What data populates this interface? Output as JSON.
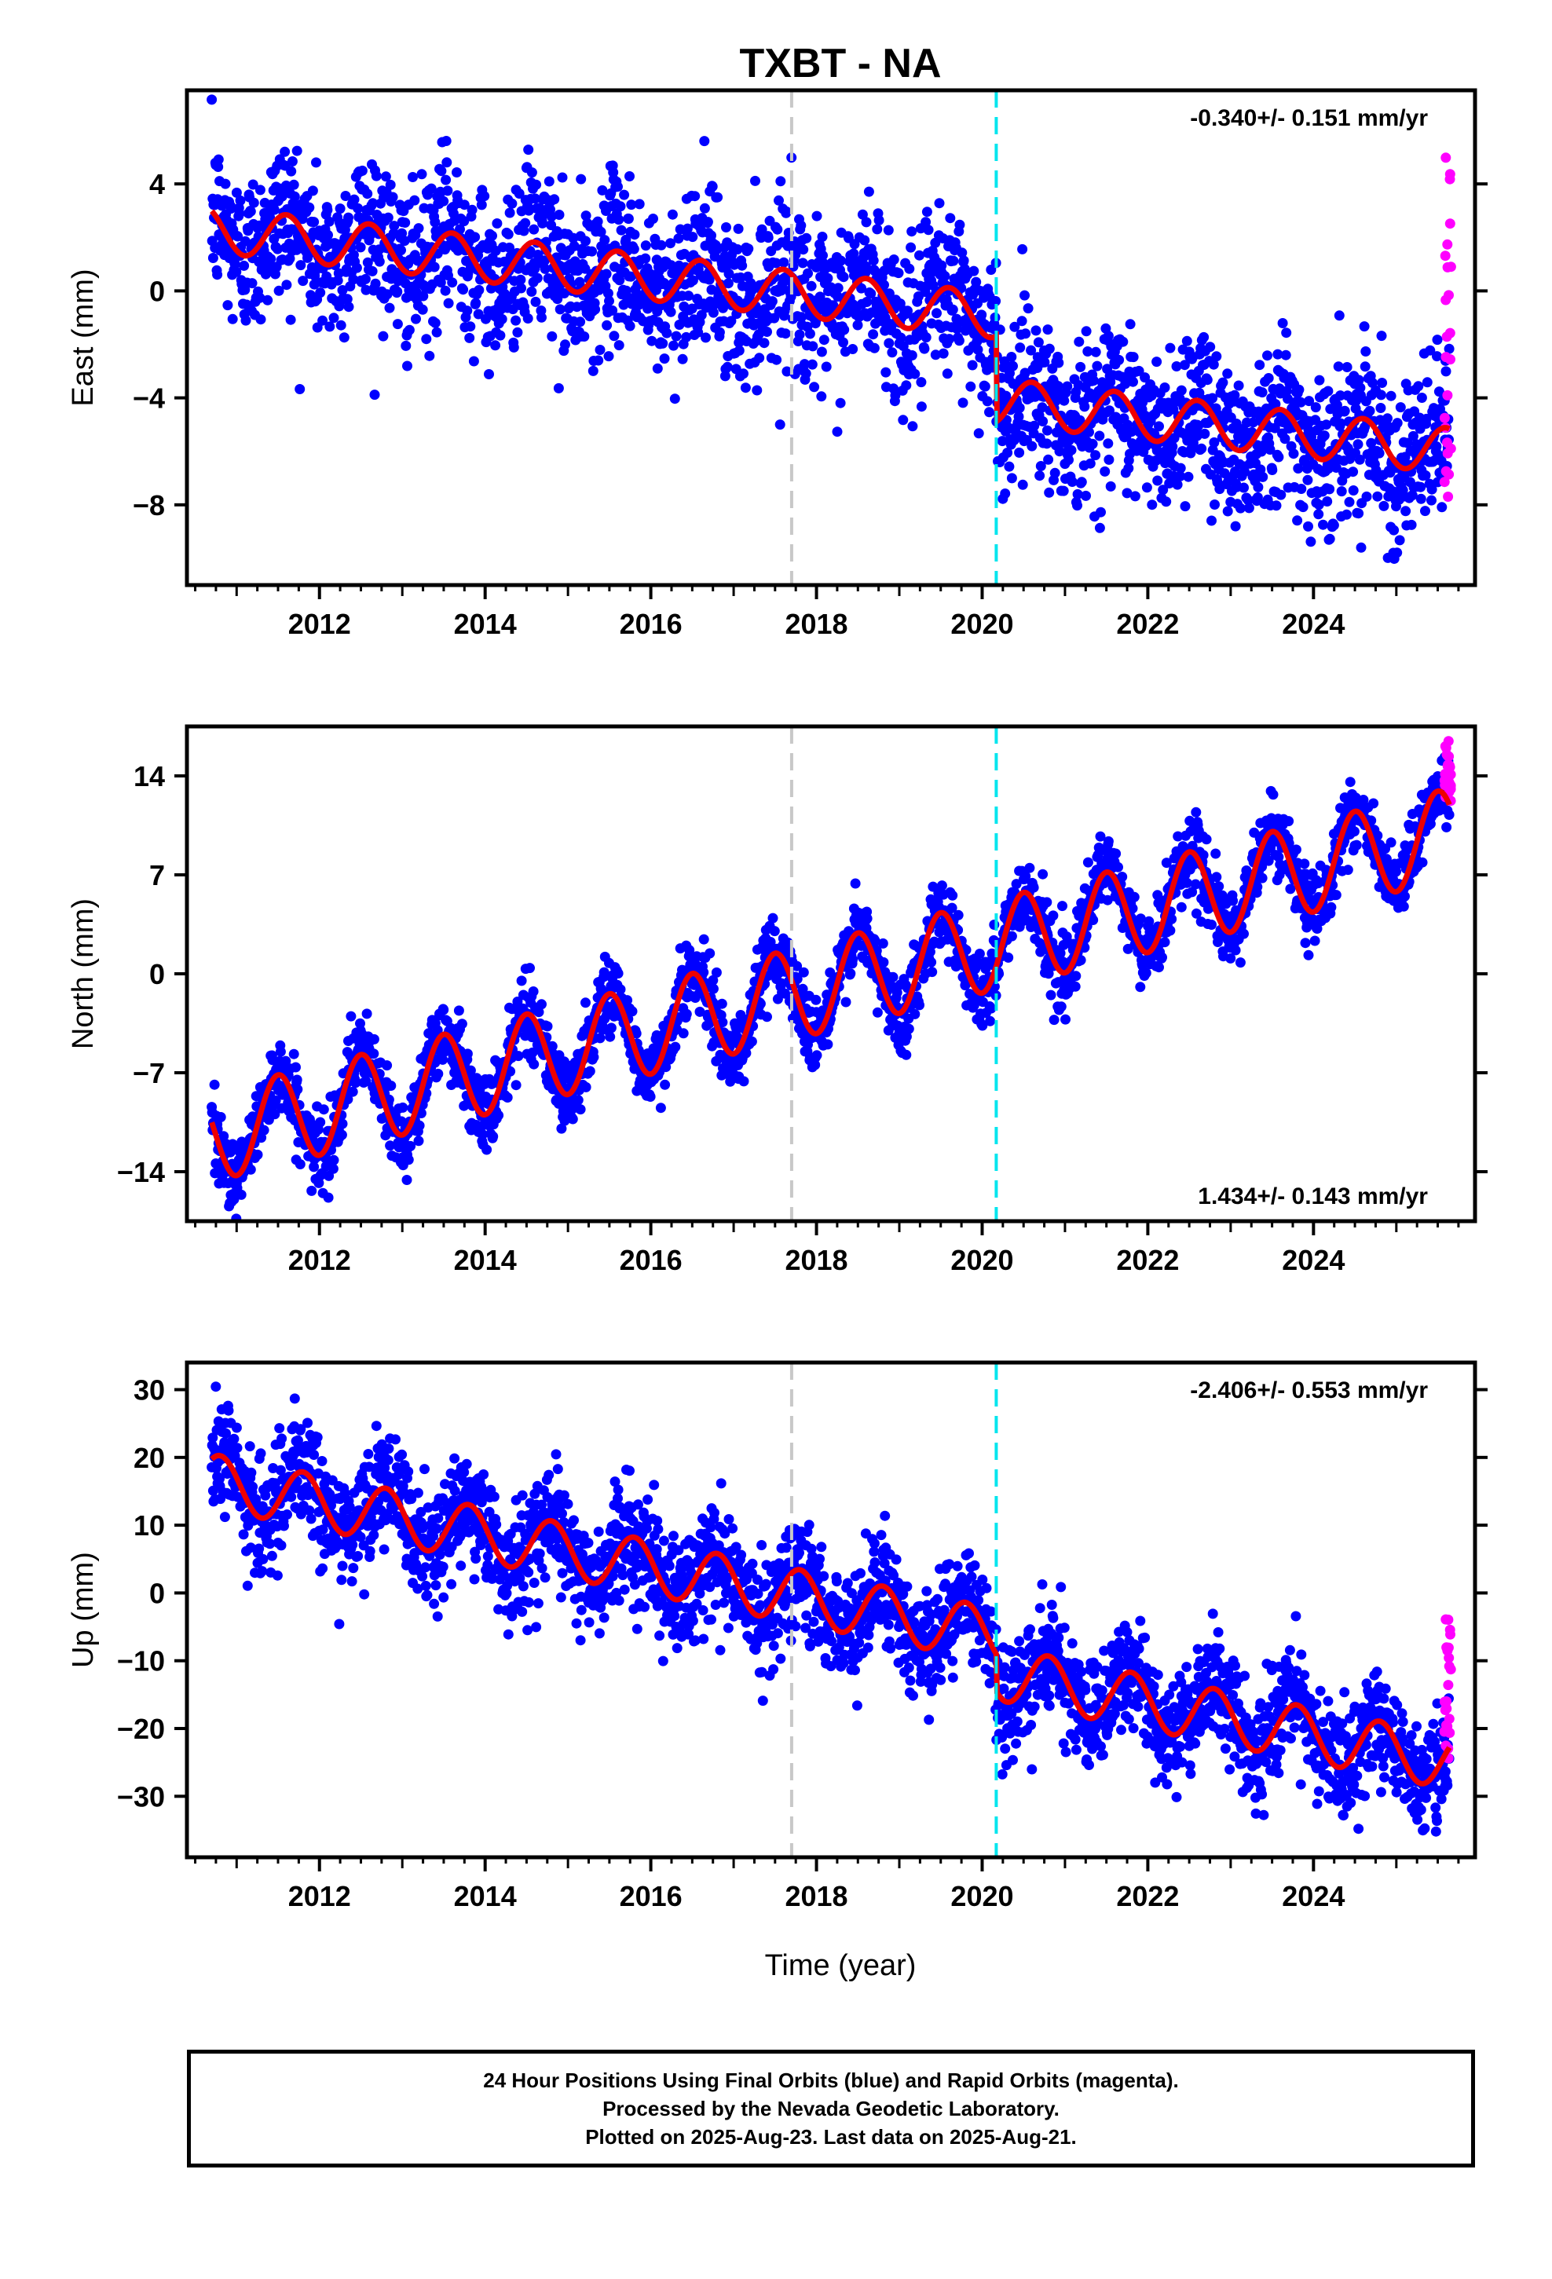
{
  "chart_data": {
    "title": "TXBT - NA",
    "type": "scatter",
    "xlabel": "Time (year)",
    "xlim": [
      2010.4,
      2025.95
    ],
    "xticks": [
      2012,
      2014,
      2016,
      2018,
      2020,
      2022,
      2024
    ],
    "xtick_labels": [
      "2012",
      "2014",
      "2016",
      "2018",
      "2020",
      "2022",
      "2024"
    ],
    "vlines": [
      {
        "x": 2017.7,
        "color": "#c8c8c8",
        "style": "dashed"
      },
      {
        "x": 2020.17,
        "color": "#00e5ee",
        "style": "dashed"
      }
    ],
    "colors": {
      "final": "#0000ff",
      "rapid": "#ff00ff",
      "model": "#ee0000"
    },
    "panels": [
      {
        "name": "east",
        "ylabel": "East (mm)",
        "ylim": [
          -11,
          7.5
        ],
        "yticks": [
          4,
          0,
          -4,
          -8
        ],
        "ytick_labels": [
          "4",
          "0",
          "−4",
          "−8"
        ],
        "rate_text": "-0.340+/- 0.151 mm/yr",
        "rate_position": "top-right",
        "model": {
          "trend": -0.34,
          "offset_at_2010_7": 2.3,
          "seasonal_amp": 0.85,
          "seasonal_phase_peak": 0.6,
          "steps": [
            {
              "x": 2020.17,
              "dy": -3.2
            }
          ]
        },
        "noise_sd": 1.5,
        "rapid_range": [
          -8.4,
          5.5
        ]
      },
      {
        "name": "north",
        "ylabel": "North (mm)",
        "ylim": [
          -17.5,
          17.5
        ],
        "yticks": [
          14,
          7,
          0,
          -7,
          -14
        ],
        "ytick_labels": [
          "14",
          "7",
          "0",
          "−7",
          "−14"
        ],
        "rate_text": "1.434+/- 0.143 mm/yr",
        "rate_position": "bottom-right",
        "model": {
          "trend": 1.434,
          "offset_at_2010_7": -11.5,
          "seasonal_amp": 3.2,
          "seasonal_phase_peak": 0.5,
          "steps": []
        },
        "noise_sd": 1.3,
        "rapid_range": [
          12,
          16.5
        ]
      },
      {
        "name": "up",
        "ylabel": "Up (mm)",
        "ylim": [
          -39,
          34
        ],
        "yticks": [
          30,
          20,
          10,
          0,
          -10,
          -20,
          -30
        ],
        "ytick_labels": [
          "30",
          "20",
          "10",
          "0",
          "−10",
          "−20",
          "−30"
        ],
        "rate_text": "-2.406+/- 0.553 mm/yr",
        "rate_position": "top-right",
        "model": {
          "trend": -2.406,
          "offset_at_2010_7": 16.5,
          "seasonal_amp": 4.0,
          "seasonal_phase_peak": 0.8,
          "steps": [
            {
              "x": 2020.17,
              "dy": -5.5
            }
          ]
        },
        "noise_sd": 4.0,
        "rapid_range": [
          -25,
          -3
        ]
      }
    ],
    "data_span": [
      2010.7,
      2025.64
    ]
  },
  "caption": {
    "line1": "24 Hour Positions Using Final Orbits (blue) and Rapid Orbits (magenta).",
    "line2": "Processed by the Nevada Geodetic Laboratory.",
    "line3": "Plotted on 2025-Aug-23. Last data on 2025-Aug-21."
  }
}
